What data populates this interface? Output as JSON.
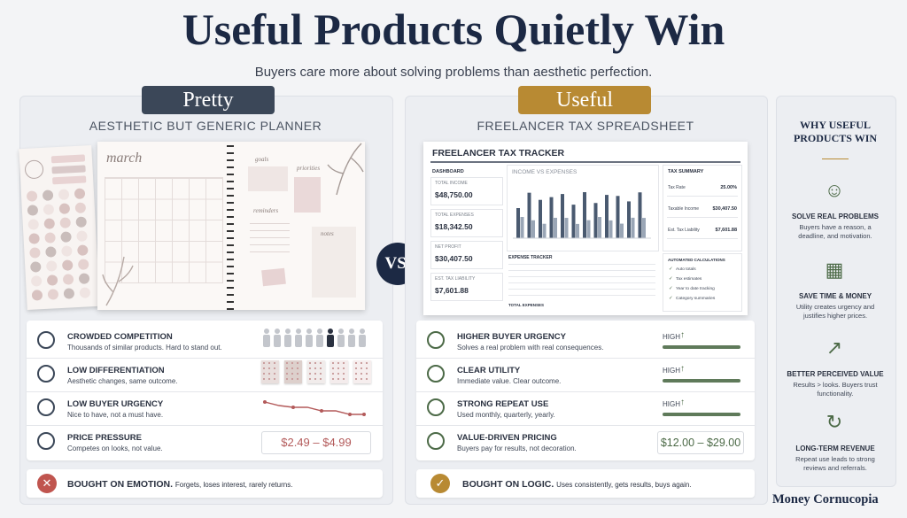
{
  "header": {
    "title": "Useful Products Quietly Win",
    "subtitle": "Buyers care more about solving problems than aesthetic perfection."
  },
  "vs": "VS.",
  "pretty": {
    "badge": "Pretty",
    "heading": "AESTHETIC BUT GENERIC PLANNER",
    "planner": {
      "month": "march",
      "sections": [
        "goals",
        "priorities",
        "reminders",
        "notes"
      ]
    },
    "rows": [
      {
        "title": "CROWDED COMPETITION",
        "text": "Thousands of similar products. Hard to stand out."
      },
      {
        "title": "LOW DIFFERENTIATION",
        "text": "Aesthetic changes, same outcome."
      },
      {
        "title": "LOW BUYER URGENCY",
        "text": "Nice to have, not a must have."
      },
      {
        "title": "PRICE PRESSURE",
        "text": "Competes on looks, not value."
      }
    ],
    "price": "$2.49 – $4.99",
    "footer": {
      "title": "BOUGHT ON EMOTION.",
      "text": "Forgets, loses interest, rarely returns."
    }
  },
  "useful": {
    "badge": "Useful",
    "heading": "FREELANCER TAX SPREADSHEET",
    "spreadsheet": {
      "title": "FREELANCER TAX TRACKER",
      "dashboard": {
        "title": "DASHBOARD",
        "cards": [
          {
            "label": "TOTAL INCOME",
            "value": "$48,750.00"
          },
          {
            "label": "TOTAL EXPENSES",
            "value": "$18,342.50"
          },
          {
            "label": "NET PROFIT",
            "value": "$30,407.50"
          },
          {
            "label": "EST. TAX LIABILITY",
            "value": "$7,601.88"
          }
        ]
      },
      "chart_title": "INCOME VS EXPENSES",
      "tax_summary": {
        "title": "TAX SUMMARY",
        "rows": [
          {
            "label": "Tax Rate",
            "value": "25.00%"
          },
          {
            "label": "Taxable Income",
            "value": "$30,407.50"
          },
          {
            "label": "Est. Tax Liability",
            "value": "$7,601.88"
          }
        ]
      },
      "expense_tracker": {
        "title": "EXPENSE TRACKER",
        "total": "TOTAL EXPENSES"
      },
      "automated": {
        "title": "AUTOMATED CALCULATIONS",
        "items": [
          "Auto totals",
          "Tax estimates",
          "Year to date tracking",
          "Category summaries"
        ]
      }
    },
    "rows": [
      {
        "title": "HIGHER BUYER URGENCY",
        "text": "Solves a real problem with real consequences.",
        "level": "HIGH"
      },
      {
        "title": "CLEAR UTILITY",
        "text": "Immediate value. Clear outcome.",
        "level": "HIGH"
      },
      {
        "title": "STRONG REPEAT USE",
        "text": "Used monthly, quarterly, yearly.",
        "level": "HIGH"
      },
      {
        "title": "VALUE-DRIVEN PRICING",
        "text": "Buyers pay for results, not decoration."
      }
    ],
    "price": "$12.00 – $29.00",
    "footer": {
      "title": "BOUGHT ON LOGIC.",
      "text": "Uses consistently, gets results, buys again."
    }
  },
  "why": {
    "title": "WHY USEFUL PRODUCTS WIN",
    "items": [
      {
        "title": "SOLVE REAL PROBLEMS",
        "text": "Buyers have a reason, a deadline, and motivation."
      },
      {
        "title": "SAVE TIME & MONEY",
        "text": "Utility creates urgency and justifies higher prices."
      },
      {
        "title": "BETTER PERCEIVED VALUE",
        "text": "Results > looks. Buyers trust functionality."
      },
      {
        "title": "LONG-TERM REVENUE",
        "text": "Repeat use leads to strong reviews and referrals."
      }
    ]
  },
  "brand": "Money Cornucopia"
}
